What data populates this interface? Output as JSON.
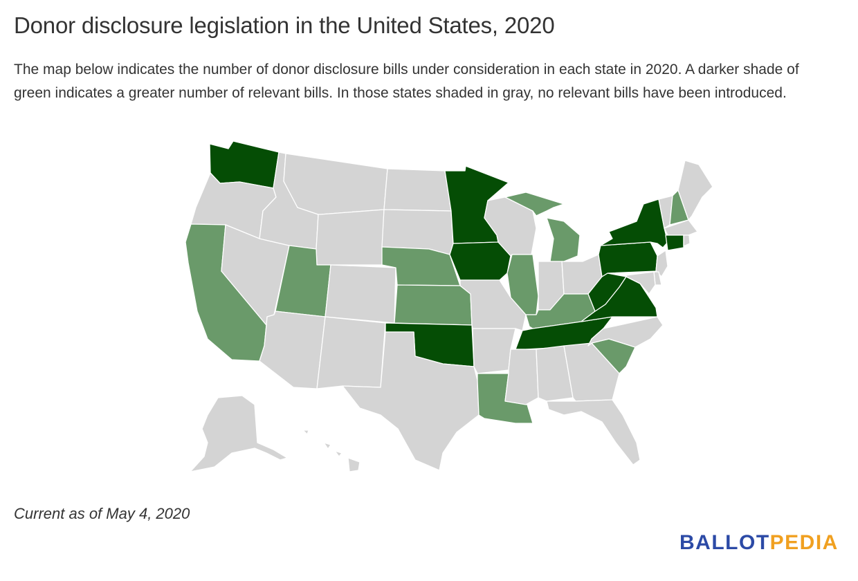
{
  "title": "Donor disclosure legislation in the United States, 2020",
  "description": "The map below indicates the number of donor disclosure bills under consideration in each state in 2020. A darker shade of green indicates a greater number of relevant bills. In those states shaded in gray, no relevant bills have been introduced.",
  "note": "Current as of May 4, 2020",
  "brand": {
    "part1": "BALLOT",
    "part2": "PEDIA",
    "color1": "#2c4aa6",
    "color2": "#f0a020"
  },
  "colors": {
    "none": "#d4d4d4",
    "light": "#6a9a6a",
    "dark": "#054d05"
  },
  "states": {
    "WA": "dark",
    "OR": "none",
    "CA": "light",
    "NV": "none",
    "ID": "none",
    "MT": "none",
    "WY": "none",
    "UT": "light",
    "AZ": "none",
    "CO": "none",
    "NM": "none",
    "ND": "none",
    "SD": "none",
    "NE": "light",
    "KS": "light",
    "OK": "dark",
    "TX": "none",
    "MN": "dark",
    "IA": "dark",
    "MO": "none",
    "AR": "none",
    "LA": "light",
    "WI": "none",
    "IL": "light",
    "MI": "light",
    "IN": "none",
    "OH": "none",
    "KY": "light",
    "TN": "dark",
    "MS": "none",
    "AL": "none",
    "GA": "none",
    "FL": "none",
    "SC": "light",
    "NC": "none",
    "VA": "dark",
    "WV": "dark",
    "PA": "dark",
    "NY": "dark",
    "VT": "none",
    "NH": "light",
    "ME": "none",
    "MA": "none",
    "CT": "dark",
    "RI": "none",
    "NJ": "none",
    "DE": "none",
    "MD": "none",
    "AK": "none",
    "HI": "none"
  }
}
